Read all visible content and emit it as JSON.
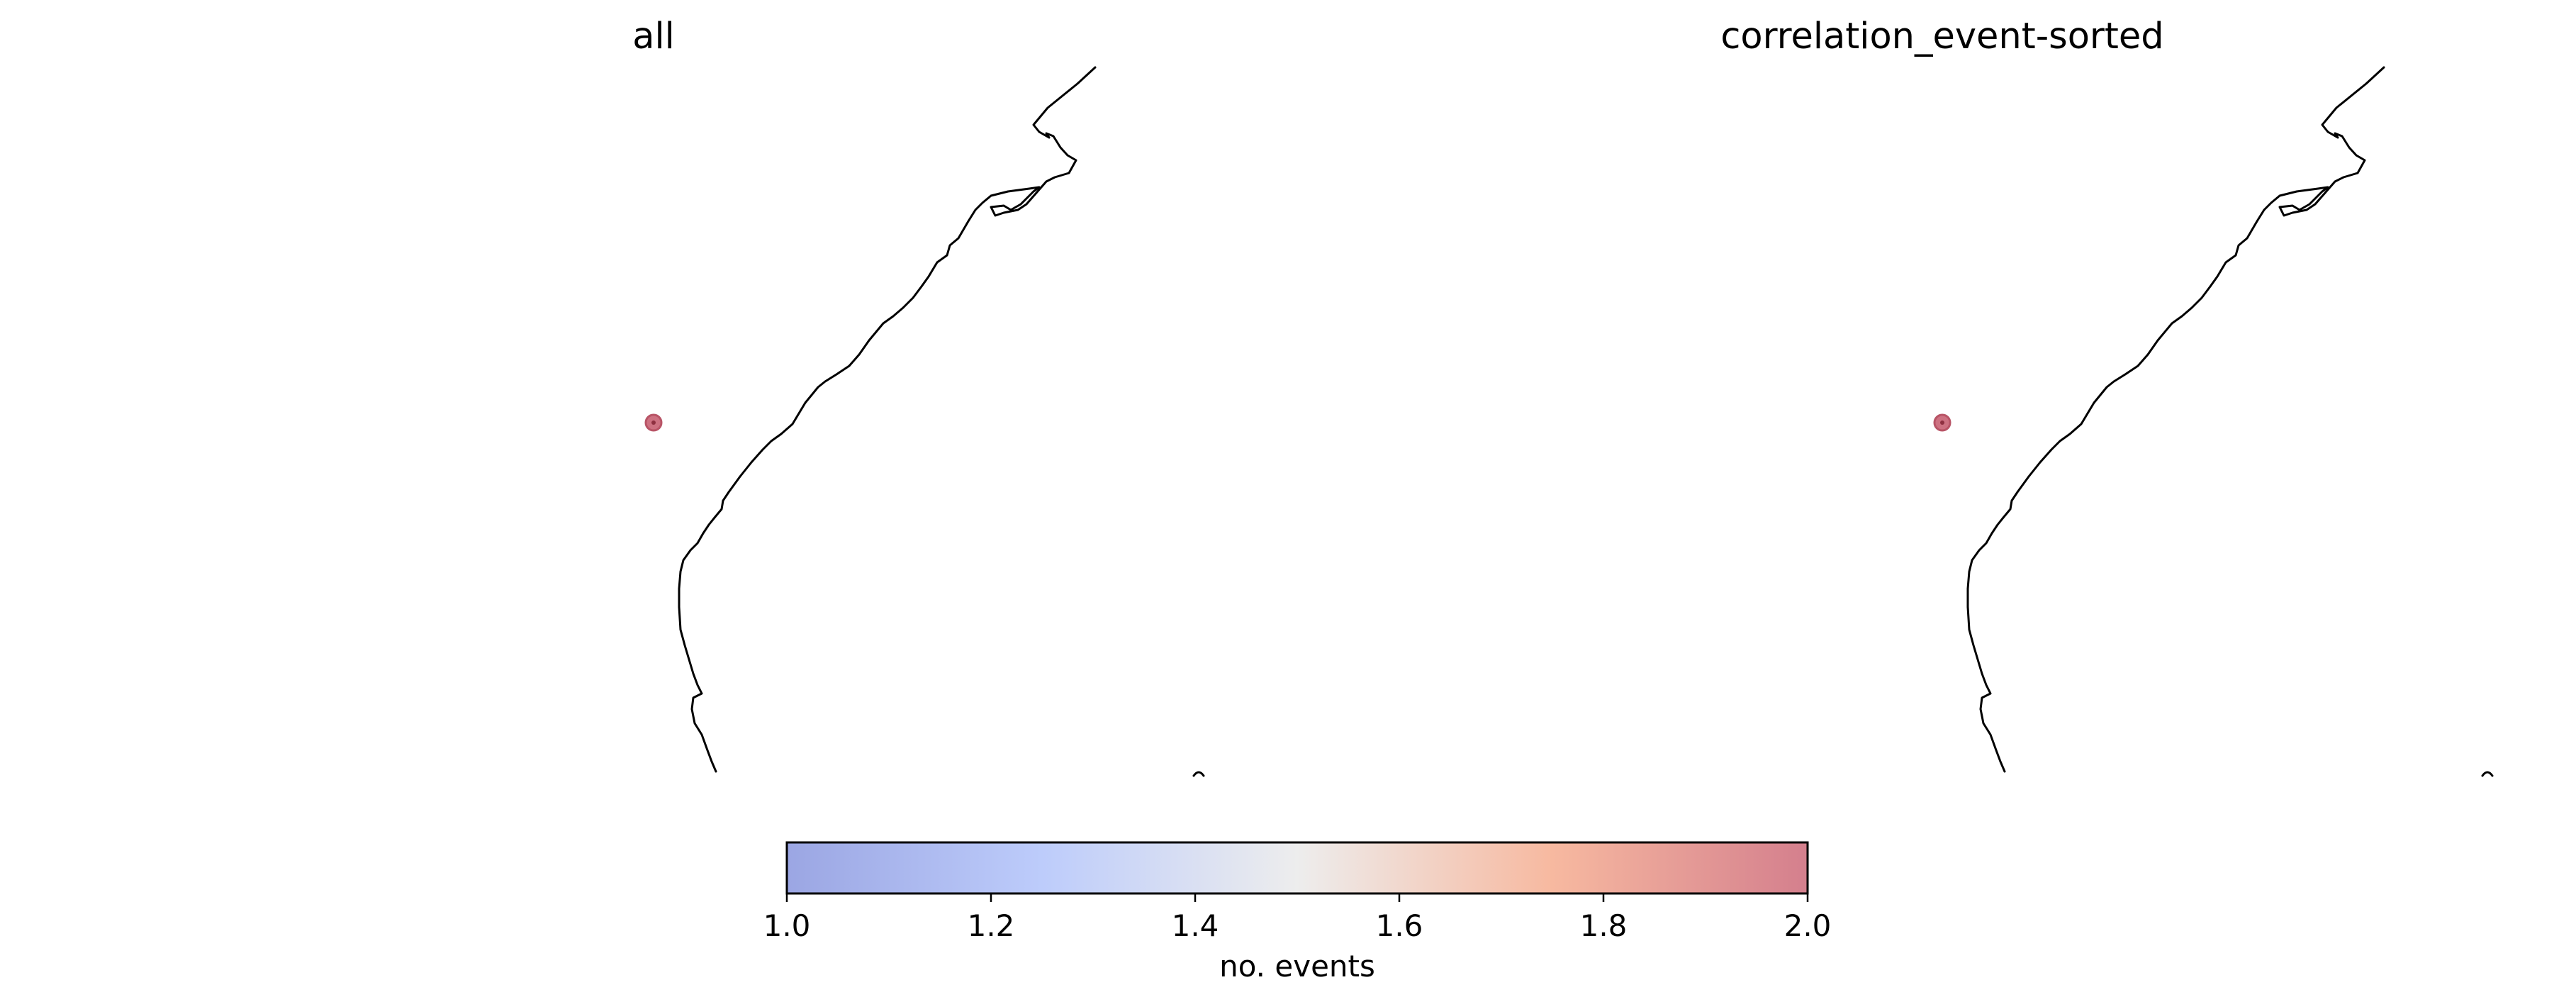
{
  "panels": [
    {
      "title": "all",
      "event_points": [
        {
          "count": 2
        }
      ]
    },
    {
      "title": "correlation_event-sorted",
      "event_points": [
        {
          "count": 2
        }
      ]
    }
  ],
  "colorbar": {
    "label": "no. events",
    "min": 1.0,
    "max": 2.0,
    "ticks": [
      "1.0",
      "1.2",
      "1.4",
      "1.6",
      "1.8",
      "2.0"
    ],
    "colormap": "coolwarm",
    "low_color": "#9ba6e3",
    "mid_color": "#ededed",
    "high_color": "#d47f8d"
  }
}
